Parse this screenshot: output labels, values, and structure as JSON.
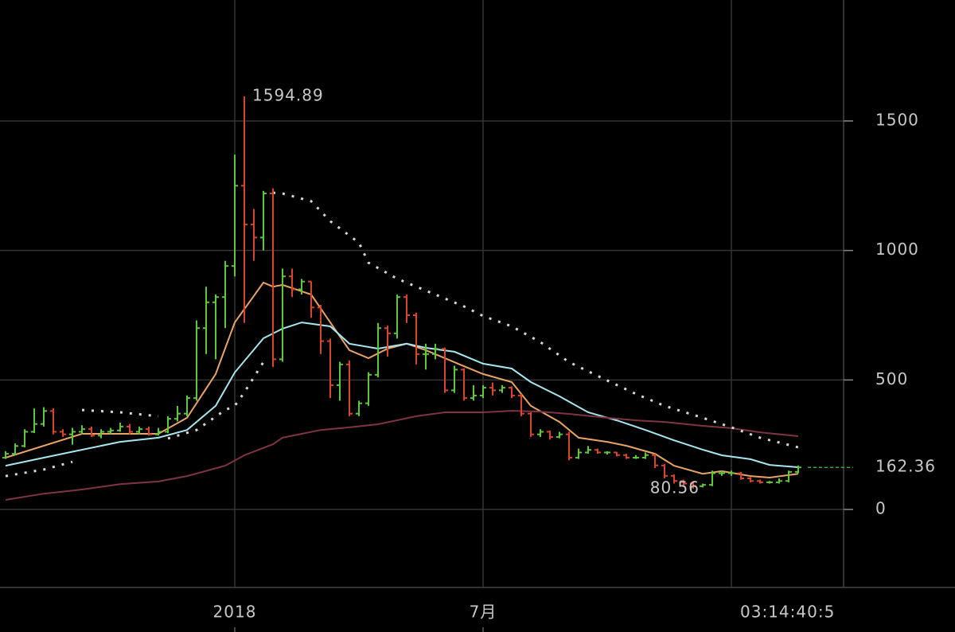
{
  "chart_data": {
    "type": "ohlc",
    "categories": [
      null,
      null,
      null,
      null,
      null,
      null,
      null,
      null,
      null,
      null,
      null,
      null,
      null,
      null,
      null,
      null,
      null,
      null,
      null,
      null,
      null,
      null,
      null,
      null,
      "2018",
      null,
      null,
      null,
      null,
      null,
      null,
      null,
      null,
      null,
      null,
      null,
      null,
      null,
      null,
      null,
      null,
      null,
      null,
      null,
      null,
      null,
      null,
      null,
      null,
      null,
      "7月",
      null,
      null,
      null,
      null,
      null,
      null,
      null,
      null,
      null,
      null,
      null,
      null,
      null,
      null,
      null,
      null,
      null,
      null,
      null,
      null,
      null,
      null,
      null,
      null,
      null,
      null,
      null,
      null,
      null,
      null,
      null,
      null,
      null
    ],
    "open": [
      200,
      215,
      245,
      300,
      330,
      380,
      300,
      290,
      300,
      310,
      285,
      300,
      305,
      320,
      300,
      310,
      290,
      300,
      350,
      370,
      430,
      700,
      800,
      820,
      940,
      1250,
      1100,
      1050,
      1220,
      580,
      900,
      850,
      880,
      780,
      650,
      480,
      560,
      370,
      410,
      520,
      700,
      680,
      820,
      750,
      600,
      600,
      620,
      460,
      540,
      430,
      440,
      470,
      460,
      470,
      440,
      370,
      290,
      300,
      280,
      290,
      200,
      220,
      230,
      220,
      220,
      210,
      200,
      200,
      210,
      170,
      130,
      110,
      100,
      90,
      95,
      140,
      140,
      140,
      120,
      110,
      105,
      105,
      110,
      145
    ],
    "high": [
      225,
      255,
      310,
      390,
      395,
      390,
      310,
      315,
      325,
      320,
      310,
      315,
      335,
      330,
      320,
      320,
      315,
      360,
      400,
      440,
      730,
      860,
      830,
      960,
      1370,
      1594.89,
      1160,
      1230,
      1240,
      930,
      930,
      890,
      880,
      790,
      660,
      570,
      575,
      420,
      530,
      720,
      710,
      830,
      830,
      760,
      640,
      640,
      625,
      555,
      545,
      480,
      480,
      490,
      480,
      475,
      445,
      375,
      310,
      305,
      300,
      300,
      235,
      245,
      235,
      225,
      222,
      215,
      210,
      220,
      215,
      175,
      135,
      115,
      105,
      100,
      150,
      150,
      150,
      145,
      125,
      115,
      110,
      120,
      150,
      170
    ],
    "low": [
      195,
      210,
      240,
      295,
      320,
      290,
      280,
      250,
      290,
      280,
      275,
      290,
      300,
      290,
      290,
      285,
      285,
      295,
      340,
      360,
      420,
      600,
      580,
      700,
      900,
      720,
      960,
      1000,
      550,
      570,
      820,
      830,
      740,
      600,
      430,
      420,
      360,
      360,
      400,
      510,
      590,
      660,
      720,
      560,
      540,
      580,
      450,
      450,
      420,
      420,
      430,
      440,
      450,
      430,
      360,
      280,
      280,
      270,
      275,
      190,
      195,
      215,
      215,
      212,
      205,
      195,
      195,
      195,
      160,
      120,
      100,
      90,
      80.56,
      85,
      90,
      130,
      130,
      115,
      105,
      100,
      100,
      100,
      105,
      140
    ],
    "close": [
      215,
      245,
      300,
      330,
      380,
      300,
      290,
      300,
      310,
      285,
      300,
      305,
      320,
      300,
      310,
      290,
      300,
      350,
      370,
      430,
      700,
      800,
      820,
      940,
      1250,
      1100,
      1050,
      1220,
      580,
      900,
      850,
      880,
      780,
      650,
      480,
      560,
      370,
      410,
      520,
      700,
      680,
      820,
      750,
      600,
      600,
      620,
      460,
      540,
      430,
      440,
      470,
      460,
      470,
      440,
      370,
      290,
      300,
      280,
      290,
      200,
      220,
      230,
      220,
      220,
      210,
      200,
      200,
      210,
      170,
      130,
      110,
      100,
      90,
      95,
      140,
      140,
      140,
      120,
      110,
      105,
      105,
      110,
      145,
      162.36
    ],
    "up_color": "#5ec83a",
    "down_color": "#d8452c",
    "lines": [
      {
        "color": "#e8a466",
        "dashed": false,
        "x": [
          0,
          8,
          16,
          19,
          22,
          24,
          27,
          28,
          29,
          32,
          34,
          36,
          38,
          40,
          42,
          44,
          48,
          50,
          53,
          55,
          58,
          60,
          63,
          65,
          68,
          70,
          73,
          75,
          78,
          80,
          83
        ],
        "values": [
          200,
          292,
          292,
          354,
          523,
          722,
          876,
          860,
          867,
          830,
          722,
          615,
          584,
          621,
          640,
          615,
          553,
          523,
          492,
          400,
          338,
          277,
          261,
          246,
          215,
          169,
          138,
          148,
          129,
          123,
          138
        ]
      },
      {
        "color": "#a6e6ee",
        "dashed": false,
        "x": [
          0,
          4,
          12,
          16,
          19,
          22,
          24,
          27,
          29,
          31,
          34,
          36,
          39,
          42,
          44,
          47,
          50,
          53,
          55,
          58,
          61,
          64,
          67,
          70,
          73,
          75,
          78,
          80,
          83
        ],
        "values": [
          169,
          200,
          261,
          277,
          307,
          400,
          529,
          661,
          698,
          722,
          707,
          640,
          621,
          640,
          624,
          609,
          563,
          544,
          492,
          437,
          375,
          344,
          307,
          267,
          231,
          209,
          194,
          172,
          163
        ]
      },
      {
        "color": "#7e3444",
        "dashed": false,
        "x": [
          0,
          4,
          8,
          12,
          16,
          19,
          23,
          25,
          28,
          29,
          33,
          36,
          39,
          43,
          46,
          50,
          53,
          56,
          59,
          63,
          66,
          69,
          73,
          76,
          79,
          83
        ],
        "values": [
          37,
          61,
          77,
          98,
          108,
          129,
          169,
          209,
          252,
          277,
          307,
          317,
          329,
          360,
          375,
          375,
          381,
          378,
          369,
          354,
          344,
          338,
          323,
          314,
          298,
          283
        ]
      },
      {
        "color": "#d8d8d8",
        "dashed": true,
        "x": [
          0,
          4,
          7,
          7.5,
          8,
          12,
          16,
          16.5,
          17,
          20,
          23,
          24,
          25,
          27,
          27.5,
          28,
          29,
          32,
          34,
          37,
          38,
          41,
          44,
          48,
          50,
          53,
          56,
          59,
          63,
          66,
          69,
          73,
          76,
          79,
          83
        ],
        "values": [
          129,
          154,
          184,
          null,
          384,
          375,
          360,
          null,
          274,
          307,
          384,
          400,
          452,
          569,
          null,
          1223,
          1220,
          1190,
          1113,
          1030,
          953,
          891,
          845,
          784,
          747,
          707,
          646,
          569,
          498,
          446,
          400,
          354,
          317,
          277,
          240
        ]
      }
    ],
    "countdown": "03:14:40:5",
    "current_color": "#3aa83a",
    "ylim": [
      -301,
      1967
    ],
    "yticks": [
      0,
      500,
      1000,
      1500
    ],
    "grid": true
  }
}
